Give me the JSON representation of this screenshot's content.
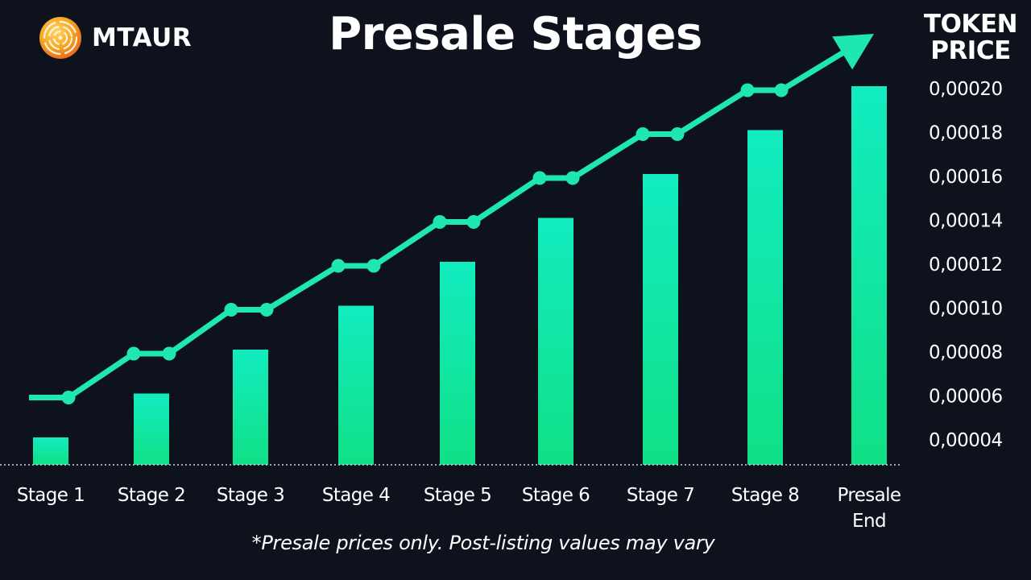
{
  "brand": {
    "name": "MTAUR",
    "logo_icon": "maze-coin-icon",
    "logo_colors": [
      "#f6a623",
      "#f15a24"
    ]
  },
  "header": {
    "title": "Presale Stages",
    "price_title_line1": "TOKEN",
    "price_title_line2": "PRICE"
  },
  "footnote": "*Presale prices only. Post-listing values may vary",
  "colors": {
    "background": "#0e121d",
    "accent": "#1ee8b0",
    "bar_top": "#12ecc0",
    "bar_bottom": "#10e086",
    "text": "#ffffff"
  },
  "chart_data": {
    "type": "bar",
    "categories": [
      "Stage 1",
      "Stage 2",
      "Stage 3",
      "Stage 4",
      "Stage 5",
      "Stage 6",
      "Stage 7",
      "Stage 8",
      "Presale End"
    ],
    "values": [
      4e-05,
      6e-05,
      8e-05,
      0.0001,
      0.00012,
      0.00014,
      0.00016,
      0.00018,
      0.0002
    ],
    "overlay_line": {
      "type": "line",
      "values": [
        6e-05,
        8e-05,
        0.0001,
        0.00012,
        0.00014,
        0.00016,
        0.00018,
        0.0002
      ],
      "arrow": true
    },
    "y_ticks": [
      "0,00004",
      "0,00006",
      "0,00008",
      "0,00010",
      "0,00012",
      "0,00014",
      "0,00016",
      "0,00018",
      "0,00020"
    ],
    "y_tick_values": [
      4e-05,
      6e-05,
      8e-05,
      0.0001,
      0.00012,
      0.00014,
      0.00016,
      0.00018,
      0.0002
    ],
    "ylabel": "TOKEN PRICE",
    "y_axis_position": "right",
    "grid": false,
    "baseline": "dotted"
  }
}
